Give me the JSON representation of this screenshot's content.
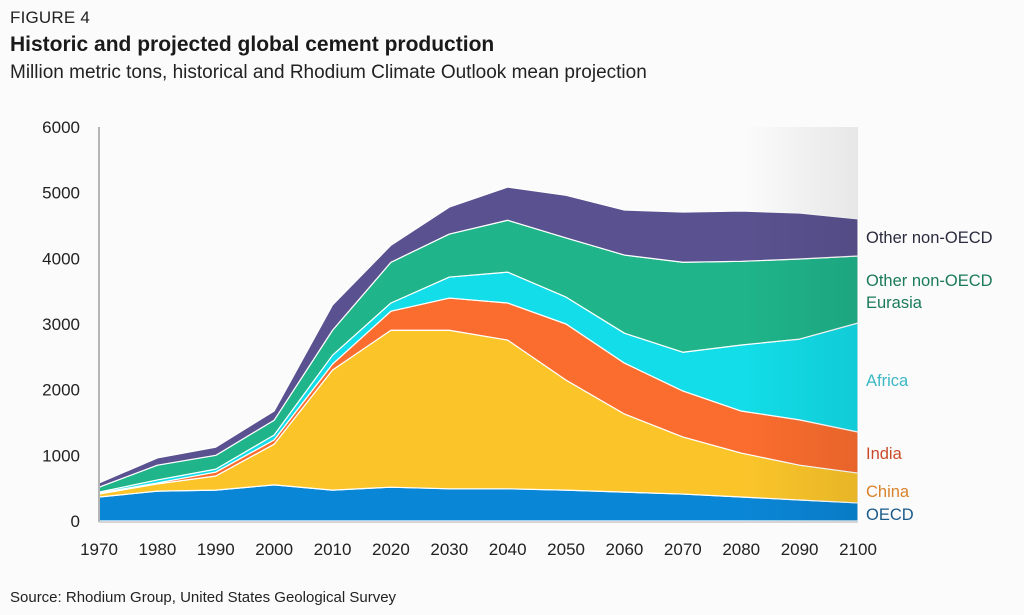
{
  "header": {
    "figure_label": "FIGURE 4",
    "title": "Historic and projected global cement production",
    "subtitle": "Million metric tons, historical and Rhodium Climate Outlook mean projection"
  },
  "footer": {
    "source": "Source: Rhodium Group, United States Geological Survey"
  },
  "chart_data": {
    "type": "area",
    "stacked": true,
    "title": "Historic and projected global cement production",
    "subtitle": "Million metric tons, historical and Rhodium Climate Outlook mean projection",
    "xlabel": "",
    "ylabel": "",
    "x": [
      1970,
      1980,
      1990,
      2000,
      2010,
      2020,
      2030,
      2040,
      2050,
      2060,
      2070,
      2080,
      2090,
      2100
    ],
    "x_ticks": [
      "1970",
      "1980",
      "1990",
      "2000",
      "2010",
      "2020",
      "2030",
      "2040",
      "2050",
      "2060",
      "2070",
      "2080",
      "2090",
      "2100"
    ],
    "y_ticks": [
      "0",
      "1000",
      "2000",
      "3000",
      "4000",
      "5000",
      "6000"
    ],
    "ylim": [
      0,
      6000
    ],
    "xlim": [
      1970,
      2100
    ],
    "grid": false,
    "legend": "right (inline labels at series end)",
    "series": [
      {
        "name": "OECD",
        "label_lines": [
          "OECD"
        ],
        "color": "#0a86d6",
        "label_color": "#1a5a8a",
        "values": [
          365,
          455,
          470,
          550,
          470,
          515,
          490,
          490,
          470,
          440,
          410,
          365,
          320,
          275
        ]
      },
      {
        "name": "China",
        "label_lines": [
          "China"
        ],
        "color": "#fbc52a",
        "label_color": "#d9822b",
        "values": [
          45,
          110,
          215,
          620,
          1830,
          2390,
          2415,
          2265,
          1675,
          1190,
          870,
          670,
          530,
          455
        ]
      },
      {
        "name": "India",
        "label_lines": [
          "India"
        ],
        "color": "#fb6d2e",
        "label_color": "#c94a2a",
        "values": [
          15,
          15,
          60,
          65,
          90,
          290,
          490,
          565,
          855,
          775,
          700,
          640,
          690,
          625
        ]
      },
      {
        "name": "Africa",
        "label_lines": [
          "Africa"
        ],
        "color": "#12dde8",
        "label_color": "#3ab8c4",
        "values": [
          15,
          45,
          45,
          75,
          135,
          125,
          320,
          470,
          410,
          455,
          590,
          1005,
          1230,
          1660
        ]
      },
      {
        "name": "Other non-OECD Eurasia",
        "label_lines": [
          "Other non-OECD",
          "Eurasia"
        ],
        "color": "#1fb48a",
        "label_color": "#1a7a5a",
        "values": [
          75,
          225,
          210,
          225,
          380,
          620,
          655,
          790,
          900,
          1190,
          1370,
          1275,
          1220,
          1020
        ]
      },
      {
        "name": "Other non-OECD",
        "label_lines": [
          "Other non-OECD"
        ],
        "color": "#5a5290",
        "label_color": "#2b2b3e",
        "values": [
          65,
          110,
          125,
          140,
          385,
          260,
          410,
          505,
          650,
          685,
          765,
          765,
          700,
          565
        ]
      }
    ]
  }
}
